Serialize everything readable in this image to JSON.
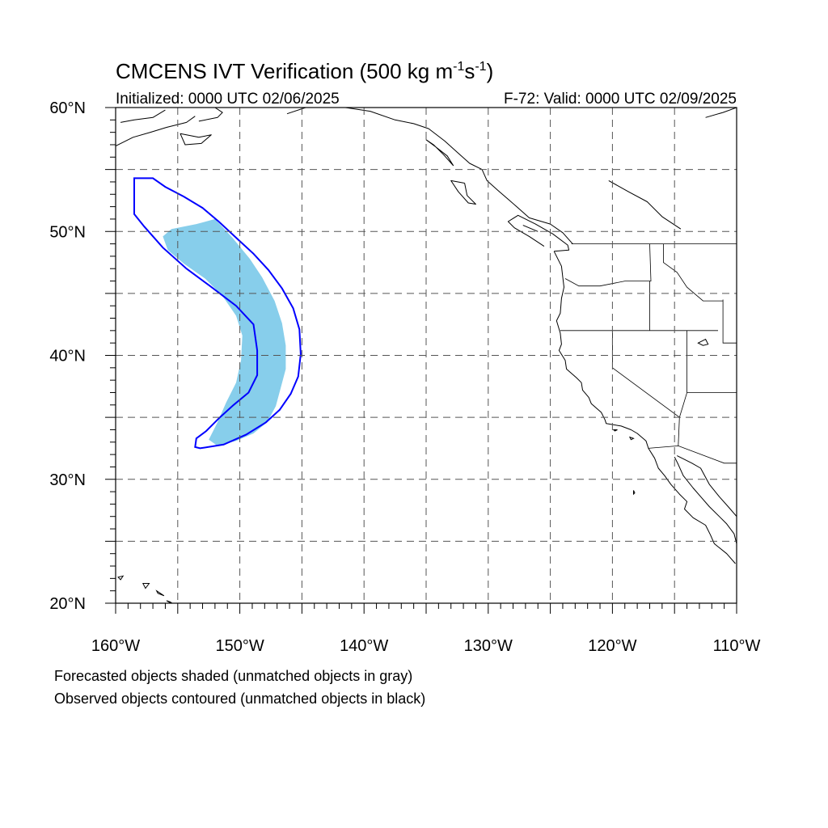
{
  "title": {
    "main": "CMCENS IVT Verification (500 kg m",
    "exp1": "-1",
    "mid": "s",
    "exp2": "-1",
    "end": ")"
  },
  "subtitle_left": "Initialized: 0000 UTC 02/06/2025",
  "subtitle_right": "F-72: Valid: 0000 UTC 02/09/2025",
  "map": {
    "extent": {
      "lon_min": -160,
      "lon_max": -110,
      "lat_min": 20,
      "lat_max": 60
    },
    "lon_labels": [
      {
        "lon": -160,
        "text": "160°W"
      },
      {
        "lon": -150,
        "text": "150°W"
      },
      {
        "lon": -140,
        "text": "140°W"
      },
      {
        "lon": -130,
        "text": "130°W"
      },
      {
        "lon": -120,
        "text": "120°W"
      },
      {
        "lon": -110,
        "text": "110°W"
      }
    ],
    "lat_labels": [
      {
        "lat": 60,
        "text": "60°N"
      },
      {
        "lat": 50,
        "text": "50°N"
      },
      {
        "lat": 40,
        "text": "40°N"
      },
      {
        "lat": 30,
        "text": "30°N"
      },
      {
        "lat": 20,
        "text": "20°N"
      }
    ],
    "grid_lon": [
      -155,
      -150,
      -145,
      -140,
      -135,
      -130,
      -125,
      -120,
      -115
    ],
    "grid_lat": [
      25,
      30,
      35,
      40,
      45,
      50,
      55
    ],
    "grid_style": "dashed gray",
    "forecast_object": {
      "color": "#87ceeb",
      "polygon": [
        [
          -152,
          51
        ],
        [
          -153.5,
          50.6
        ],
        [
          -155.5,
          50.2
        ],
        [
          -156.2,
          49.6
        ],
        [
          -155.8,
          48.5
        ],
        [
          -154.5,
          47.4
        ],
        [
          -152.8,
          46.2
        ],
        [
          -151.4,
          44.8
        ],
        [
          -150.3,
          43.2
        ],
        [
          -149.8,
          41.6
        ],
        [
          -149.9,
          39.6
        ],
        [
          -150.3,
          37.8
        ],
        [
          -151.1,
          36.2
        ],
        [
          -151.8,
          34.6
        ],
        [
          -152.5,
          33.2
        ],
        [
          -151.8,
          32.7
        ],
        [
          -150.3,
          33.1
        ],
        [
          -148.9,
          33.7
        ],
        [
          -147.8,
          34.6
        ],
        [
          -147.1,
          35.9
        ],
        [
          -146.7,
          37.4
        ],
        [
          -146.3,
          38.9
        ],
        [
          -146.3,
          40.8
        ],
        [
          -146.6,
          42.6
        ],
        [
          -147.2,
          44.4
        ],
        [
          -148.2,
          46.3
        ],
        [
          -149.2,
          47.8
        ],
        [
          -150.6,
          49.5
        ],
        [
          -152,
          51
        ]
      ]
    },
    "observed_object": {
      "color": "#0000ff",
      "polygon": [
        [
          -158.5,
          54.3
        ],
        [
          -157,
          54.3
        ],
        [
          -156,
          53.6
        ],
        [
          -154.5,
          52.8
        ],
        [
          -153,
          51.9
        ],
        [
          -151.7,
          50.8
        ],
        [
          -150.2,
          49.4
        ],
        [
          -148.9,
          48.2
        ],
        [
          -147.7,
          46.9
        ],
        [
          -146.6,
          45.4
        ],
        [
          -145.7,
          43.8
        ],
        [
          -145.2,
          42.1
        ],
        [
          -145.1,
          40.1
        ],
        [
          -145.3,
          38.3
        ],
        [
          -145.9,
          36.9
        ],
        [
          -146.8,
          35.6
        ],
        [
          -147.9,
          34.6
        ],
        [
          -149.5,
          33.6
        ],
        [
          -151.3,
          32.8
        ],
        [
          -153.2,
          32.5
        ],
        [
          -153.6,
          32.6
        ],
        [
          -153.5,
          33.3
        ],
        [
          -152.7,
          33.9
        ],
        [
          -151.6,
          35.0
        ],
        [
          -150.5,
          36.0
        ],
        [
          -149.3,
          37.0
        ],
        [
          -148.6,
          38.4
        ],
        [
          -148.6,
          40.4
        ],
        [
          -148.9,
          42.5
        ],
        [
          -150.3,
          44.0
        ],
        [
          -152.4,
          45.6
        ],
        [
          -154.3,
          47.0
        ],
        [
          -156.2,
          48.7
        ],
        [
          -157.7,
          50.4
        ],
        [
          -158.5,
          51.4
        ],
        [
          -158.5,
          54.3
        ]
      ]
    },
    "coastlines": [
      [
        [
          -124.7,
          48.4
        ],
        [
          -124.1,
          47.2
        ],
        [
          -124.0,
          46.3
        ],
        [
          -123.9,
          45.5
        ],
        [
          -124.1,
          44.6
        ],
        [
          -124.2,
          43.4
        ],
        [
          -124.5,
          42.8
        ],
        [
          -124.2,
          41.8
        ],
        [
          -124.1,
          40.9
        ],
        [
          -124.3,
          40.4
        ],
        [
          -123.8,
          39.6
        ],
        [
          -123.7,
          38.9
        ],
        [
          -122.9,
          38.2
        ],
        [
          -122.5,
          37.8
        ],
        [
          -122.4,
          37.2
        ],
        [
          -121.9,
          36.6
        ],
        [
          -121.7,
          36.1
        ],
        [
          -120.9,
          35.4
        ],
        [
          -120.6,
          34.8
        ],
        [
          -120.5,
          34.5
        ],
        [
          -119.3,
          34.3
        ],
        [
          -118.5,
          34.0
        ],
        [
          -118.0,
          33.7
        ],
        [
          -117.3,
          33.1
        ],
        [
          -117.1,
          32.5
        ],
        [
          -116.6,
          31.7
        ],
        [
          -116.3,
          30.9
        ],
        [
          -115.8,
          30.3
        ],
        [
          -115.3,
          29.6
        ],
        [
          -114.6,
          28.8
        ],
        [
          -114.0,
          28.2
        ],
        [
          -114.2,
          27.6
        ],
        [
          -113.5,
          26.9
        ],
        [
          -112.5,
          26.3
        ],
        [
          -112.1,
          25.5
        ],
        [
          -111.8,
          24.8
        ],
        [
          -110.8,
          24.0
        ],
        [
          -110.1,
          23.2
        ]
      ],
      [
        [
          -115.0,
          31.8
        ],
        [
          -114.7,
          31.2
        ],
        [
          -114.3,
          30.3
        ],
        [
          -113.5,
          29.3
        ],
        [
          -112.9,
          28.6
        ],
        [
          -112.2,
          27.8
        ],
        [
          -111.4,
          27.0
        ],
        [
          -110.8,
          26.4
        ],
        [
          -110.2,
          25.6
        ],
        [
          -110.0,
          24.8
        ]
      ],
      [
        [
          -114.8,
          31.9
        ],
        [
          -113.6,
          31.3
        ],
        [
          -112.9,
          30.9
        ],
        [
          -112.2,
          29.6
        ],
        [
          -111.4,
          28.6
        ],
        [
          -110.6,
          27.7
        ],
        [
          -110.0,
          27.0
        ]
      ],
      [
        [
          -130.5,
          55.0
        ],
        [
          -131.5,
          55.5
        ],
        [
          -132.5,
          56.4
        ],
        [
          -133.5,
          57.3
        ],
        [
          -134.8,
          58.3
        ],
        [
          -136.0,
          58.7
        ],
        [
          -137.5,
          59.0
        ],
        [
          -139.5,
          59.7
        ],
        [
          -141.5,
          60.0
        ]
      ],
      [
        [
          -125.5,
          48.8
        ],
        [
          -126.7,
          49.6
        ],
        [
          -127.9,
          50.3
        ],
        [
          -128.4,
          50.8
        ],
        [
          -127.6,
          51.3
        ],
        [
          -126.2,
          50.6
        ],
        [
          -124.8,
          49.8
        ],
        [
          -123.6,
          48.9
        ],
        [
          -123.5,
          48.5
        ],
        [
          -124.7,
          48.4
        ]
      ],
      [
        [
          -123.2,
          49.0
        ],
        [
          -124.0,
          49.9
        ],
        [
          -125.0,
          50.6
        ],
        [
          -126.7,
          51.1
        ],
        [
          -127.6,
          51.9
        ],
        [
          -128.4,
          52.6
        ],
        [
          -129.2,
          53.3
        ],
        [
          -130.1,
          54.1
        ],
        [
          -130.5,
          55.0
        ]
      ],
      [
        [
          -131.9,
          53.9
        ],
        [
          -131.7,
          52.9
        ],
        [
          -131.0,
          52.2
        ],
        [
          -131.6,
          52.3
        ],
        [
          -132.4,
          53.2
        ],
        [
          -133.0,
          54.1
        ],
        [
          -131.9,
          53.9
        ]
      ],
      [
        [
          -132.8,
          55.3
        ],
        [
          -133.3,
          56.1
        ],
        [
          -134.2,
          56.8
        ],
        [
          -135.0,
          57.4
        ],
        [
          -134.4,
          57.0
        ],
        [
          -133.6,
          56.2
        ],
        [
          -132.8,
          55.3
        ]
      ],
      [
        [
          -159.6,
          58.8
        ],
        [
          -158.5,
          59.0
        ],
        [
          -157.0,
          59.2
        ],
        [
          -156.0,
          59.8
        ]
      ],
      [
        [
          -160.0,
          56.9
        ],
        [
          -158.6,
          57.6
        ],
        [
          -157.2,
          58.0
        ],
        [
          -155.9,
          58.4
        ],
        [
          -154.3,
          58.8
        ],
        [
          -153.6,
          59.3
        ]
      ],
      [
        [
          -154.8,
          57.9
        ],
        [
          -153.3,
          57.6
        ],
        [
          -152.3,
          57.8
        ],
        [
          -153.1,
          57.1
        ],
        [
          -154.4,
          57.0
        ],
        [
          -154.8,
          57.9
        ]
      ],
      [
        [
          -153.3,
          58.9
        ],
        [
          -151.8,
          59.2
        ],
        [
          -151.4,
          59.6
        ],
        [
          -152.0,
          60.0
        ]
      ],
      [
        [
          -146.2,
          59.5
        ],
        [
          -144.7,
          60.0
        ]
      ],
      [
        [
          -112.5,
          59.2
        ],
        [
          -111.1,
          59.6
        ],
        [
          -110.0,
          60.0
        ]
      ],
      [
        [
          -120.3,
          54.1
        ],
        [
          -118.7,
          53.2
        ],
        [
          -117.2,
          52.4
        ],
        [
          -116.0,
          51.2
        ],
        [
          -114.5,
          50.2
        ]
      ],
      [
        [
          -126.0,
          50.0
        ],
        [
          -127.2,
          50.5
        ]
      ]
    ],
    "islands": [
      [
        [
          -155.9,
          20.2
        ],
        [
          -155.0,
          19.7
        ],
        [
          -155.6,
          20.1
        ],
        [
          -155.9,
          20.2
        ]
      ],
      [
        [
          -156.7,
          21.0
        ],
        [
          -156.1,
          20.6
        ],
        [
          -156.6,
          20.8
        ],
        [
          -156.7,
          21.0
        ]
      ],
      [
        [
          -157.3,
          21.6
        ],
        [
          -157.8,
          21.6
        ],
        [
          -157.6,
          21.2
        ],
        [
          -157.3,
          21.6
        ]
      ],
      [
        [
          -159.4,
          22.2
        ],
        [
          -159.8,
          22.1
        ],
        [
          -159.6,
          21.9
        ],
        [
          -159.4,
          22.2
        ]
      ],
      [
        [
          -118.6,
          33.4
        ],
        [
          -118.3,
          33.3
        ],
        [
          -118.5,
          33.2
        ],
        [
          -118.6,
          33.4
        ]
      ],
      [
        [
          -119.9,
          34.0
        ],
        [
          -119.6,
          34.0
        ],
        [
          -119.8,
          33.9
        ],
        [
          -119.9,
          34.0
        ]
      ],
      [
        [
          -118.3,
          29.1
        ],
        [
          -118.2,
          28.9
        ],
        [
          -118.3,
          28.8
        ],
        [
          -118.3,
          29.1
        ]
      ],
      [
        [
          -113.1,
          41.0
        ],
        [
          -112.5,
          41.3
        ],
        [
          -112.3,
          40.9
        ],
        [
          -112.7,
          40.8
        ],
        [
          -113.1,
          41.0
        ]
      ]
    ],
    "borders": [
      [
        [
          -123.3,
          49.0
        ],
        [
          -110.0,
          49.0
        ]
      ],
      [
        [
          -124.2,
          42.0
        ],
        [
          -117.0,
          42.0
        ],
        [
          -111.5,
          42.0
        ]
      ],
      [
        [
          -120.0,
          42.0
        ],
        [
          -120.0,
          39.0
        ],
        [
          -114.6,
          35.0
        ]
      ],
      [
        [
          -117.1,
          32.5
        ],
        [
          -114.7,
          32.7
        ],
        [
          -111.0,
          31.3
        ],
        [
          -110.0,
          31.3
        ]
      ],
      [
        [
          -117.0,
          42.0
        ],
        [
          -117.0,
          46.0
        ],
        [
          -116.9,
          46.0
        ],
        [
          -117.0,
          49.0
        ]
      ],
      [
        [
          -123.8,
          46.2
        ],
        [
          -122.7,
          45.6
        ],
        [
          -121.0,
          45.6
        ],
        [
          -119.0,
          46.0
        ],
        [
          -117.0,
          46.0
        ]
      ],
      [
        [
          -115.9,
          49.0
        ],
        [
          -115.9,
          47.5
        ],
        [
          -114.8,
          46.7
        ],
        [
          -114.0,
          45.5
        ],
        [
          -112.7,
          44.4
        ],
        [
          -111.1,
          44.4
        ]
      ],
      [
        [
          -114.0,
          42.0
        ],
        [
          -114.0,
          37.0
        ],
        [
          -114.3,
          36.0
        ],
        [
          -114.6,
          35.0
        ]
      ],
      [
        [
          -114.0,
          37.0
        ],
        [
          -110.0,
          37.0
        ]
      ],
      [
        [
          -111.1,
          44.5
        ],
        [
          -111.1,
          41.0
        ],
        [
          -110.0,
          41.0
        ]
      ],
      [
        [
          -114.6,
          35.0
        ],
        [
          -114.7,
          32.7
        ]
      ]
    ]
  },
  "captions": {
    "line1": "Forecasted objects shaded (unmatched objects in gray)",
    "line2": "Observed objects contoured (unmatched objects in black)"
  }
}
